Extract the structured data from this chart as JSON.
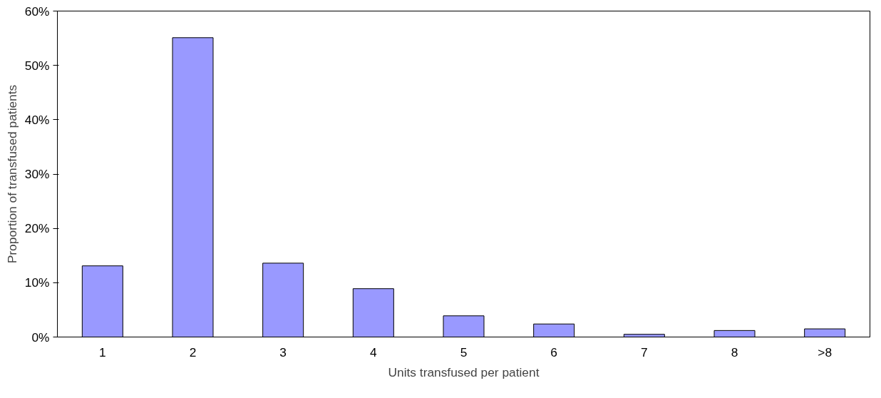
{
  "chart_data": {
    "type": "bar",
    "xlabel": "Units transfused per patient",
    "ylabel": "Proportion of transfused patients",
    "categories": [
      "1",
      "2",
      "3",
      "4",
      "5",
      "6",
      "7",
      "8",
      ">8"
    ],
    "values": [
      13.1,
      55.1,
      13.6,
      8.9,
      3.9,
      2.4,
      0.5,
      1.2,
      1.5
    ],
    "color": "#9999ff",
    "ylim": [
      0,
      60
    ],
    "yticks": [
      {
        "value": 0,
        "label": "0%"
      },
      {
        "value": 10,
        "label": "10%"
      },
      {
        "value": 20,
        "label": "20%"
      },
      {
        "value": 30,
        "label": "30%"
      },
      {
        "value": 40,
        "label": "40%"
      },
      {
        "value": 50,
        "label": "50%"
      },
      {
        "value": 60,
        "label": "60%"
      }
    ],
    "grid": false
  }
}
